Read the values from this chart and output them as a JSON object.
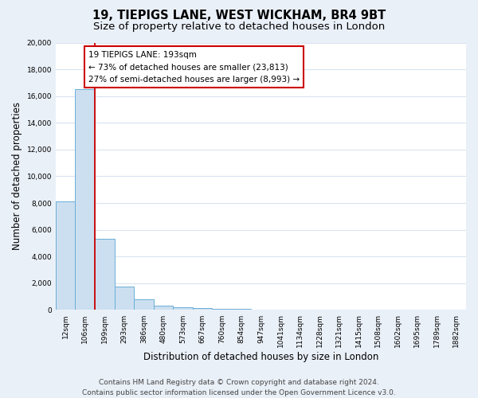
{
  "title": "19, TIEPIGS LANE, WEST WICKHAM, BR4 9BT",
  "subtitle": "Size of property relative to detached houses in London",
  "xlabel": "Distribution of detached houses by size in London",
  "ylabel": "Number of detached properties",
  "bar_labels": [
    "12sqm",
    "106sqm",
    "199sqm",
    "293sqm",
    "386sqm",
    "480sqm",
    "573sqm",
    "667sqm",
    "760sqm",
    "854sqm",
    "947sqm",
    "1041sqm",
    "1134sqm",
    "1228sqm",
    "1321sqm",
    "1415sqm",
    "1508sqm",
    "1602sqm",
    "1695sqm",
    "1789sqm",
    "1882sqm"
  ],
  "bar_heights": [
    8100,
    16500,
    5300,
    1750,
    780,
    300,
    200,
    130,
    100,
    80,
    0,
    0,
    0,
    0,
    0,
    0,
    0,
    0,
    0,
    0,
    0
  ],
  "bar_color": "#ccdff0",
  "bar_edge_color": "#6aafd6",
  "property_line_color": "#cc0000",
  "ylim": [
    0,
    20000
  ],
  "yticks": [
    0,
    2000,
    4000,
    6000,
    8000,
    10000,
    12000,
    14000,
    16000,
    18000,
    20000
  ],
  "annotation_title": "19 TIEPIGS LANE: 193sqm",
  "annotation_line1": "← 73% of detached houses are smaller (23,813)",
  "annotation_line2": "27% of semi-detached houses are larger (8,993) →",
  "annotation_box_color": "#ffffff",
  "annotation_box_edge": "#cc0000",
  "footer_line1": "Contains HM Land Registry data © Crown copyright and database right 2024.",
  "footer_line2": "Contains public sector information licensed under the Open Government Licence v3.0.",
  "bg_color": "#eaf0f8",
  "plot_bg_color": "#ffffff",
  "grid_color": "#d8e4f0",
  "title_fontsize": 10.5,
  "subtitle_fontsize": 9.5,
  "axis_label_fontsize": 8.5,
  "tick_fontsize": 6.5,
  "footer_fontsize": 6.5,
  "annotation_fontsize": 7.5
}
